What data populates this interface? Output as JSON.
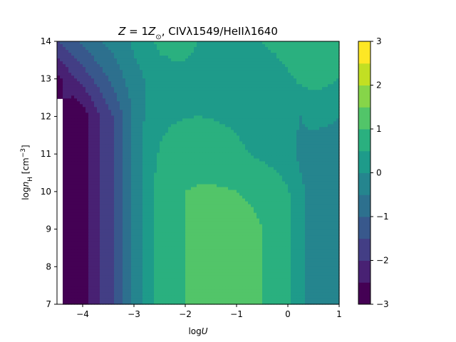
{
  "chart_data": {
    "type": "heatmap",
    "title": "Z = 1Z⊙, CIVλ1549/HeIIλ1640",
    "title_parts": {
      "z_var": "Z",
      "eq": " = 1",
      "z_sym": "Z",
      "z_sub": "⊙",
      "rest": ", CIVλ1549/HeIIλ1640"
    },
    "xlabel": "logU",
    "xlabel_parts": {
      "log": "log",
      "var": "U"
    },
    "ylabel": "log n_H [cm^-3]",
    "ylabel_parts": {
      "log": "log",
      "var": "n",
      "sub": "H",
      "unit_open": " [cm",
      "sup": "−3",
      "unit_close": "]"
    },
    "xlim": [
      -4.5,
      1
    ],
    "ylim": [
      7,
      14
    ],
    "x_ticks": [
      {
        "value": -4,
        "label": "−4"
      },
      {
        "value": -3,
        "label": "−3"
      },
      {
        "value": -2,
        "label": "−2"
      },
      {
        "value": -1,
        "label": "−1"
      },
      {
        "value": 0,
        "label": "0"
      },
      {
        "value": 1,
        "label": "1"
      }
    ],
    "y_ticks": [
      {
        "value": 7,
        "label": "7"
      },
      {
        "value": 8,
        "label": "8"
      },
      {
        "value": 9,
        "label": "9"
      },
      {
        "value": 10,
        "label": "10"
      },
      {
        "value": 11,
        "label": "11"
      },
      {
        "value": 12,
        "label": "12"
      },
      {
        "value": 13,
        "label": "13"
      },
      {
        "value": 14,
        "label": "14"
      }
    ],
    "colorbar": {
      "levels": [
        -3,
        -2.5,
        -2,
        -1.5,
        -1,
        -0.5,
        0,
        0.5,
        1,
        1.5,
        2,
        2.5,
        3
      ],
      "colors": [
        "#440154",
        "#482173",
        "#433e85",
        "#38588c",
        "#2d708e",
        "#25858e",
        "#1e9b8a",
        "#2ab07f",
        "#52c569",
        "#86d549",
        "#c2df23",
        "#fde725"
      ],
      "ticks": [
        {
          "value": -3,
          "label": "−3"
        },
        {
          "value": -2,
          "label": "−2"
        },
        {
          "value": -1,
          "label": "−1"
        },
        {
          "value": 0,
          "label": "0"
        },
        {
          "value": 1,
          "label": "1"
        },
        {
          "value": 2,
          "label": "2"
        },
        {
          "value": 3,
          "label": "3"
        }
      ]
    },
    "field": {
      "description": "log line ratio as function of (logU, log nH)",
      "logU": [
        -4.5,
        -4.25,
        -4.0,
        -3.75,
        -3.5,
        -3.25,
        -3.0,
        -2.75,
        -2.5,
        -2.25,
        -2.0,
        -1.75,
        -1.5,
        -1.25,
        -1.0,
        -0.75,
        -0.5,
        -0.25,
        0.0,
        0.25,
        0.5,
        0.75,
        1.0
      ],
      "lognH": [
        7,
        8,
        9,
        10,
        11,
        12,
        13,
        14
      ],
      "values": [
        [
          null,
          -3.0,
          -2.8,
          -2.2,
          -1.7,
          -1.1,
          -0.4,
          0.3,
          0.7,
          0.9,
          1.0,
          1.1,
          1.15,
          1.15,
          1.1,
          1.05,
          1.0,
          0.9,
          0.6,
          0.1,
          -0.3,
          -0.4,
          -0.4
        ],
        [
          null,
          -3.0,
          -2.8,
          -2.2,
          -1.7,
          -1.1,
          -0.4,
          0.3,
          0.7,
          0.9,
          1.0,
          1.15,
          1.2,
          1.2,
          1.15,
          1.1,
          1.0,
          0.9,
          0.6,
          0.1,
          -0.3,
          -0.4,
          -0.4
        ],
        [
          null,
          -3.0,
          -2.8,
          -2.2,
          -1.7,
          -1.1,
          -0.4,
          0.3,
          0.7,
          0.9,
          1.0,
          1.15,
          1.2,
          1.2,
          1.15,
          1.1,
          1.0,
          0.9,
          0.6,
          0.1,
          -0.3,
          -0.4,
          -0.4
        ],
        [
          null,
          -3.0,
          -2.8,
          -2.2,
          -1.7,
          -1.1,
          -0.4,
          0.3,
          0.7,
          0.9,
          1.0,
          1.05,
          1.05,
          1.05,
          1.0,
          0.95,
          0.9,
          0.8,
          0.55,
          0.1,
          -0.2,
          -0.3,
          -0.35
        ],
        [
          null,
          -3.0,
          -2.8,
          -2.2,
          -1.7,
          -1.1,
          -0.4,
          0.2,
          0.55,
          0.7,
          0.75,
          0.78,
          0.75,
          0.7,
          0.6,
          0.5,
          0.4,
          0.3,
          0.15,
          -0.1,
          -0.35,
          -0.4,
          -0.4
        ],
        [
          null,
          -3.0,
          -2.8,
          -2.2,
          -1.7,
          -1.1,
          -0.4,
          0.1,
          0.35,
          0.45,
          0.48,
          0.5,
          0.48,
          0.45,
          0.4,
          0.35,
          0.3,
          0.2,
          0.1,
          0.0,
          0.2,
          0.15,
          0.0
        ],
        [
          -2.6,
          -2.2,
          -1.8,
          -1.4,
          -1.0,
          -0.6,
          -0.2,
          0.05,
          0.3,
          0.4,
          0.45,
          0.45,
          0.45,
          0.45,
          0.4,
          0.35,
          0.3,
          0.3,
          0.4,
          0.6,
          0.65,
          0.6,
          0.5
        ],
        [
          -1.5,
          -1.2,
          -0.9,
          -0.6,
          -0.4,
          -0.2,
          0.1,
          0.35,
          0.6,
          0.6,
          0.55,
          0.5,
          0.5,
          0.5,
          0.5,
          0.5,
          0.5,
          0.6,
          0.8,
          0.9,
          0.85,
          0.7,
          0.5
        ]
      ]
    }
  }
}
